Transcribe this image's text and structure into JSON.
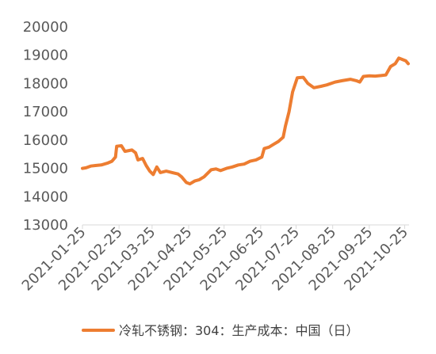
{
  "chart_data": {
    "type": "line",
    "title": "",
    "xlabel": "",
    "ylabel": "",
    "ylim": [
      13000,
      20000
    ],
    "yticks": [
      13000,
      14000,
      15000,
      16000,
      17000,
      18000,
      19000,
      20000
    ],
    "xticks": [
      "2021-01-25",
      "2021-02-25",
      "2021-03-25",
      "2021-04-25",
      "2021-05-25",
      "2021-06-25",
      "2021-07-25",
      "2021-08-25",
      "2021-09-25",
      "2021-10-25"
    ],
    "grid": false,
    "legend_position": "bottom",
    "series": [
      {
        "name": "冷轧不锈钢：304：生产成本：中国（日）",
        "color": "#ED7D31",
        "points": [
          [
            "2021-01-25",
            15000
          ],
          [
            "2021-01-28",
            15020
          ],
          [
            "2021-02-01",
            15080
          ],
          [
            "2021-02-05",
            15100
          ],
          [
            "2021-02-10",
            15120
          ],
          [
            "2021-02-15",
            15180
          ],
          [
            "2021-02-19",
            15250
          ],
          [
            "2021-02-22",
            15400
          ],
          [
            "2021-02-23",
            15780
          ],
          [
            "2021-02-27",
            15800
          ],
          [
            "2021-03-02",
            15600
          ],
          [
            "2021-03-08",
            15650
          ],
          [
            "2021-03-11",
            15550
          ],
          [
            "2021-03-13",
            15300
          ],
          [
            "2021-03-17",
            15350
          ],
          [
            "2021-03-20",
            15100
          ],
          [
            "2021-03-23",
            14900
          ],
          [
            "2021-03-26",
            14780
          ],
          [
            "2021-03-29",
            15050
          ],
          [
            "2021-04-01",
            14850
          ],
          [
            "2021-04-06",
            14900
          ],
          [
            "2021-04-11",
            14850
          ],
          [
            "2021-04-16",
            14800
          ],
          [
            "2021-04-19",
            14700
          ],
          [
            "2021-04-23",
            14500
          ],
          [
            "2021-04-26",
            14450
          ],
          [
            "2021-04-30",
            14550
          ],
          [
            "2021-05-04",
            14600
          ],
          [
            "2021-05-08",
            14700
          ],
          [
            "2021-05-14",
            14950
          ],
          [
            "2021-05-18",
            14980
          ],
          [
            "2021-05-22",
            14920
          ],
          [
            "2021-05-27",
            15000
          ],
          [
            "2021-06-01",
            15050
          ],
          [
            "2021-06-06",
            15120
          ],
          [
            "2021-06-11",
            15150
          ],
          [
            "2021-06-16",
            15250
          ],
          [
            "2021-06-21",
            15300
          ],
          [
            "2021-06-26",
            15400
          ],
          [
            "2021-06-28",
            15700
          ],
          [
            "2021-07-02",
            15750
          ],
          [
            "2021-07-06",
            15850
          ],
          [
            "2021-07-10",
            15950
          ],
          [
            "2021-07-14",
            16100
          ],
          [
            "2021-07-16",
            16500
          ],
          [
            "2021-07-19",
            17000
          ],
          [
            "2021-07-22",
            17700
          ],
          [
            "2021-07-26",
            18200
          ],
          [
            "2021-07-31",
            18220
          ],
          [
            "2021-08-04",
            18000
          ],
          [
            "2021-08-09",
            17850
          ],
          [
            "2021-08-15",
            17900
          ],
          [
            "2021-08-20",
            17950
          ],
          [
            "2021-08-27",
            18050
          ],
          [
            "2021-09-02",
            18100
          ],
          [
            "2021-09-09",
            18150
          ],
          [
            "2021-09-14",
            18100
          ],
          [
            "2021-09-17",
            18050
          ],
          [
            "2021-09-20",
            18250
          ],
          [
            "2021-09-25",
            18270
          ],
          [
            "2021-09-30",
            18260
          ],
          [
            "2021-10-05",
            18280
          ],
          [
            "2021-10-09",
            18300
          ],
          [
            "2021-10-13",
            18600
          ],
          [
            "2021-10-17",
            18700
          ],
          [
            "2021-10-20",
            18900
          ],
          [
            "2021-10-23",
            18850
          ],
          [
            "2021-10-26",
            18800
          ],
          [
            "2021-10-28",
            18700
          ]
        ]
      }
    ]
  }
}
